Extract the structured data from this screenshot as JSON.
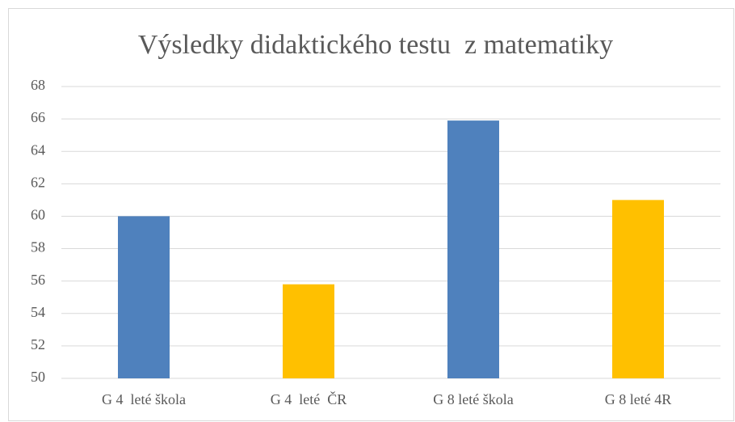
{
  "chart_data": {
    "type": "bar",
    "title": "Výsledky didaktického testu  z matematiky",
    "categories": [
      "G 4  leté škola",
      "G 4  leté  ČR",
      "G 8 leté škola",
      "G 8 leté 4R"
    ],
    "values": [
      60,
      55.8,
      65.9,
      61
    ],
    "colors": [
      "#4f81bd",
      "#ffc000",
      "#4f81bd",
      "#ffc000"
    ],
    "ylim": [
      50,
      68
    ],
    "yticks": [
      50,
      52,
      54,
      56,
      58,
      60,
      62,
      64,
      66,
      68
    ],
    "grid": true
  }
}
